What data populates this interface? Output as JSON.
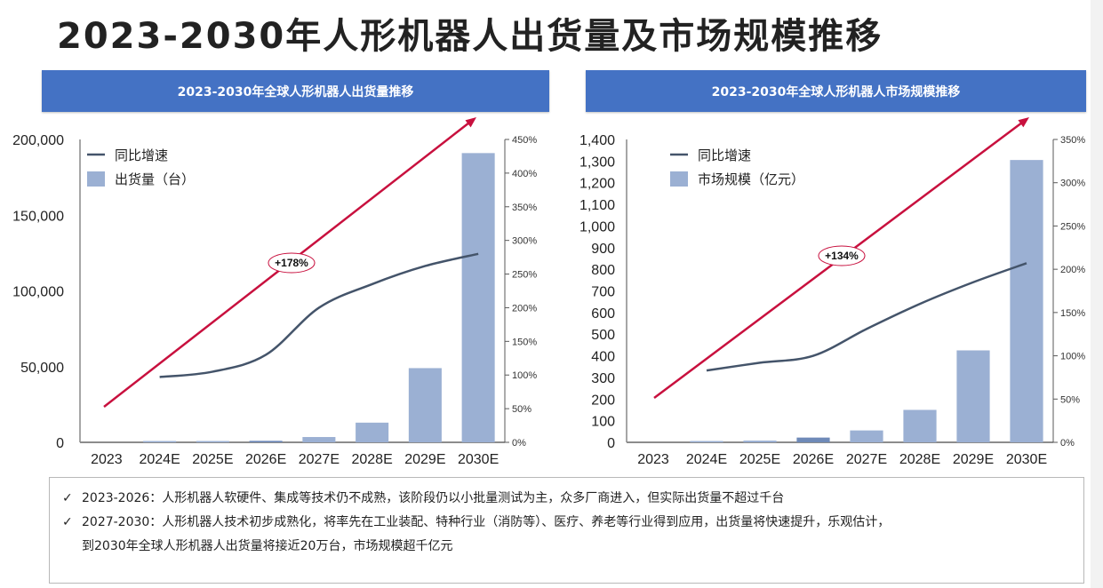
{
  "page": {
    "title": "2023-2030年人形机器人出货量及市场规模推移"
  },
  "notes": [
    {
      "mark": "✓",
      "text": "2023-2026：人形机器人软硬件、集成等技术仍不成熟，该阶段仍以小批量测试为主，众多厂商进入，但实际出货量不超过千台"
    },
    {
      "mark": "✓",
      "text": "2027-2030：人形机器人技术初步成熟化，将率先在工业装配、特种行业（消防等）、医疗、养老等行业得到应用，出货量将快速提升，乐观估计，",
      "continuation": "到2030年全球人形机器人出货量将接近20万台，市场规模超千亿元"
    }
  ],
  "colors": {
    "banner": "#4472c4",
    "bar": "#9bb0d3",
    "bar_dark": "#6f8ab8",
    "line": "#44546a",
    "arrow": "#c8103e",
    "axis": "#7f7f7f",
    "text": "#222222"
  },
  "chart_data": [
    {
      "type": "bar",
      "title": "2023-2030年全球人形机器人出货量推移",
      "categories": [
        "2023",
        "2024E",
        "2025E",
        "2026E",
        "2027E",
        "2028E",
        "2029E",
        "2030E"
      ],
      "series": [
        {
          "name": "出货量（台）",
          "type": "bar",
          "axis": "left",
          "values": [
            0,
            100,
            300,
            1000,
            3500,
            13000,
            49000,
            191000
          ]
        },
        {
          "name": "同比增速",
          "type": "line",
          "axis": "right",
          "values": [
            null,
            97,
            105,
            130,
            200,
            235,
            262,
            280
          ]
        }
      ],
      "left_axis": {
        "ylim": [
          0,
          200000
        ],
        "ticks": [
          0,
          50000,
          100000,
          150000,
          200000
        ],
        "tick_labels": [
          "0",
          "50,000",
          "100,000",
          "150,000",
          "200,000"
        ]
      },
      "right_axis": {
        "ylim": [
          0,
          450
        ],
        "ticks": [
          0,
          50,
          100,
          150,
          200,
          250,
          300,
          350,
          400,
          450
        ],
        "tick_labels": [
          "0%",
          "50%",
          "100%",
          "150%",
          "200%",
          "250%",
          "300%",
          "350%",
          "400%",
          "450%"
        ]
      },
      "legend": [
        {
          "label": "同比增速",
          "kind": "line"
        },
        {
          "label": "出货量（台）",
          "kind": "bar"
        }
      ],
      "legend_position": "top-left",
      "annotation": {
        "label": "+178%",
        "kind": "CAGR arrow"
      },
      "grid": false
    },
    {
      "type": "bar",
      "title": "2023-2030年全球人形机器人市场规模推移",
      "categories": [
        "2023",
        "2024E",
        "2025E",
        "2026E",
        "2027E",
        "2028E",
        "2029E",
        "2030E"
      ],
      "series": [
        {
          "name": "市场规模（亿元）",
          "type": "bar",
          "axis": "left",
          "values": [
            0,
            2,
            8,
            22,
            55,
            150,
            425,
            1305
          ]
        },
        {
          "name": "同比增速",
          "type": "line",
          "axis": "right",
          "values": [
            null,
            83,
            92,
            100,
            131,
            160,
            185,
            207
          ]
        }
      ],
      "left_axis": {
        "ylim": [
          0,
          1400
        ],
        "ticks": [
          0,
          100,
          200,
          300,
          400,
          500,
          600,
          700,
          800,
          900,
          1000,
          1100,
          1200,
          1300,
          1400
        ],
        "tick_labels": [
          "0",
          "100",
          "200",
          "300",
          "400",
          "500",
          "600",
          "700",
          "800",
          "900",
          "1,000",
          "1,100",
          "1,200",
          "1,300",
          "1,400"
        ]
      },
      "right_axis": {
        "ylim": [
          0,
          350
        ],
        "ticks": [
          0,
          50,
          100,
          150,
          200,
          250,
          300,
          350
        ],
        "tick_labels": [
          "0%",
          "50%",
          "100%",
          "150%",
          "200%",
          "250%",
          "300%",
          "350%"
        ]
      },
      "legend": [
        {
          "label": "同比增速",
          "kind": "line"
        },
        {
          "label": "市场规模（亿元）",
          "kind": "bar"
        }
      ],
      "legend_position": "top-left",
      "annotation": {
        "label": "+134%",
        "kind": "CAGR arrow"
      },
      "grid": false
    }
  ]
}
